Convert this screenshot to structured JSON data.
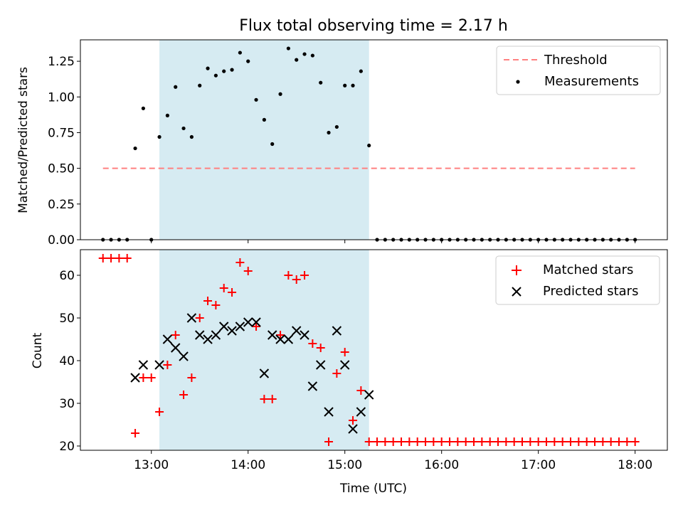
{
  "figure": {
    "title": "Flux total observing time = 2.17 h",
    "xlabel": "Time (UTC)"
  },
  "chart_data": [
    {
      "type": "scatter",
      "panel": "top",
      "ylabel": "Matched/Predicted stars",
      "xlim": [
        "12:16",
        "18:20"
      ],
      "ylim": [
        0,
        1.4
      ],
      "yticks": [
        0.0,
        0.25,
        0.5,
        0.75,
        1.0,
        1.25
      ],
      "ytick_labels": [
        "0.00",
        "0.25",
        "0.50",
        "0.75",
        "1.00",
        "1.25"
      ],
      "grid": false,
      "legend_placement": "top-right",
      "highlight_span": {
        "start": "13:05",
        "end": "15:15",
        "color": "#add8e6"
      },
      "series": [
        {
          "name": "Threshold",
          "kind": "line",
          "style": "dashed",
          "color": "#ff8080",
          "x": [
            "12:30",
            "18:00"
          ],
          "y": [
            0.5,
            0.5
          ]
        },
        {
          "name": "Measurements",
          "kind": "points",
          "color": "#000000",
          "x": [
            "12:30",
            "12:35",
            "12:40",
            "12:45",
            "12:50",
            "12:55",
            "13:00",
            "13:05",
            "13:10",
            "13:15",
            "13:20",
            "13:25",
            "13:30",
            "13:35",
            "13:40",
            "13:45",
            "13:50",
            "13:55",
            "14:00",
            "14:05",
            "14:10",
            "14:15",
            "14:20",
            "14:25",
            "14:30",
            "14:35",
            "14:40",
            "14:45",
            "14:50",
            "14:55",
            "15:00",
            "15:05",
            "15:10",
            "15:15",
            "15:20",
            "15:25",
            "15:30",
            "15:35",
            "15:40",
            "15:45",
            "15:50",
            "15:55",
            "16:00",
            "16:05",
            "16:10",
            "16:15",
            "16:20",
            "16:25",
            "16:30",
            "16:35",
            "16:40",
            "16:45",
            "16:50",
            "16:55",
            "17:00",
            "17:05",
            "17:10",
            "17:15",
            "17:20",
            "17:25",
            "17:30",
            "17:35",
            "17:40",
            "17:45",
            "17:50",
            "17:55",
            "18:00"
          ],
          "y": [
            0,
            0,
            0,
            0,
            0.64,
            0.92,
            0,
            0.72,
            0.87,
            1.07,
            0.78,
            0.72,
            1.08,
            1.2,
            1.15,
            1.18,
            1.19,
            1.31,
            1.25,
            0.98,
            0.84,
            0.67,
            1.02,
            1.34,
            1.26,
            1.3,
            1.29,
            1.1,
            0.75,
            0.79,
            1.08,
            1.08,
            1.18,
            0.66,
            0,
            0,
            0,
            0,
            0,
            0,
            0,
            0,
            0,
            0,
            0,
            0,
            0,
            0,
            0,
            0,
            0,
            0,
            0,
            0,
            0,
            0,
            0,
            0,
            0,
            0,
            0,
            0,
            0,
            0,
            0,
            0,
            0
          ]
        }
      ]
    },
    {
      "type": "scatter",
      "panel": "bottom",
      "ylabel": "Count",
      "xlim": [
        "12:16",
        "18:20"
      ],
      "ylim": [
        19,
        66
      ],
      "yticks": [
        20,
        30,
        40,
        50,
        60
      ],
      "ytick_labels": [
        "20",
        "30",
        "40",
        "50",
        "60"
      ],
      "xticks": [
        "13:00",
        "14:00",
        "15:00",
        "16:00",
        "17:00",
        "18:00"
      ],
      "grid": false,
      "legend_placement": "top-right",
      "highlight_span": {
        "start": "13:05",
        "end": "15:15",
        "color": "#add8e6"
      },
      "series": [
        {
          "name": "Matched stars",
          "marker": "plus",
          "color": "#ff0000",
          "x": [
            "12:30",
            "12:35",
            "12:40",
            "12:45",
            "12:50",
            "12:55",
            "13:00",
            "13:05",
            "13:10",
            "13:15",
            "13:20",
            "13:25",
            "13:30",
            "13:35",
            "13:40",
            "13:45",
            "13:50",
            "13:55",
            "14:00",
            "14:05",
            "14:10",
            "14:15",
            "14:20",
            "14:25",
            "14:30",
            "14:35",
            "14:40",
            "14:45",
            "14:50",
            "14:55",
            "15:00",
            "15:05",
            "15:10",
            "15:15",
            "15:20",
            "15:25",
            "15:30",
            "15:35",
            "15:40",
            "15:45",
            "15:50",
            "15:55",
            "16:00",
            "16:05",
            "16:10",
            "16:15",
            "16:20",
            "16:25",
            "16:30",
            "16:35",
            "16:40",
            "16:45",
            "16:50",
            "16:55",
            "17:00",
            "17:05",
            "17:10",
            "17:15",
            "17:20",
            "17:25",
            "17:30",
            "17:35",
            "17:40",
            "17:45",
            "17:50",
            "17:55",
            "18:00"
          ],
          "y": [
            64,
            64,
            64,
            64,
            23,
            36,
            36,
            28,
            39,
            46,
            32,
            36,
            50,
            54,
            53,
            57,
            56,
            63,
            61,
            48,
            31,
            31,
            46,
            60,
            59,
            60,
            44,
            43,
            21,
            37,
            42,
            26,
            33,
            21,
            21,
            21,
            21,
            21,
            21,
            21,
            21,
            21,
            21,
            21,
            21,
            21,
            21,
            21,
            21,
            21,
            21,
            21,
            21,
            21,
            21,
            21,
            21,
            21,
            21,
            21,
            21,
            21,
            21,
            21,
            21,
            21,
            21
          ]
        },
        {
          "name": "Predicted stars",
          "marker": "x",
          "color": "#000000",
          "x": [
            "12:50",
            "12:55",
            "13:05",
            "13:10",
            "13:15",
            "13:20",
            "13:25",
            "13:30",
            "13:35",
            "13:40",
            "13:45",
            "13:50",
            "13:55",
            "14:00",
            "14:05",
            "14:10",
            "14:15",
            "14:20",
            "14:25",
            "14:30",
            "14:35",
            "14:40",
            "14:45",
            "14:50",
            "14:55",
            "15:00",
            "15:05",
            "15:10",
            "15:15"
          ],
          "y": [
            36,
            39,
            39,
            45,
            43,
            41,
            50,
            46,
            45,
            46,
            48,
            47,
            48,
            49,
            49,
            37,
            46,
            45,
            45,
            47,
            46,
            34,
            39,
            28,
            47,
            39,
            24,
            28,
            32
          ]
        }
      ]
    }
  ]
}
